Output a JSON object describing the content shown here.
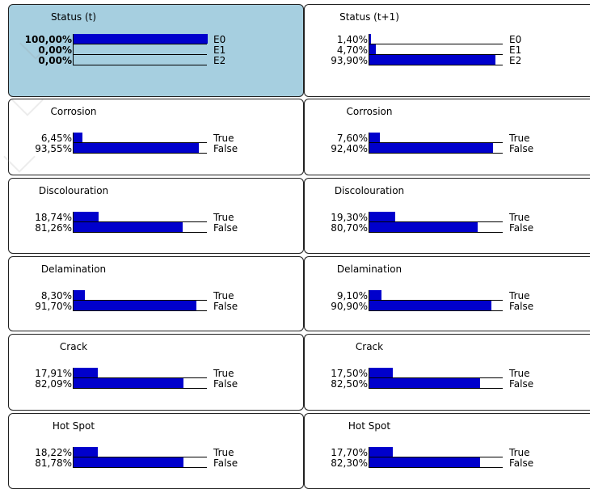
{
  "nodes": [
    {
      "title": "Status (t)",
      "selected": true,
      "bold": true,
      "states": [
        {
          "pct": "100,00%",
          "value": 100.0,
          "label": "E0"
        },
        {
          "pct": "0,00%",
          "value": 0.0,
          "label": "E1"
        },
        {
          "pct": "0,00%",
          "value": 0.0,
          "label": "E2"
        }
      ]
    },
    {
      "title": "Status (t+1)",
      "selected": false,
      "bold": false,
      "states": [
        {
          "pct": "1,40%",
          "value": 1.4,
          "label": "E0"
        },
        {
          "pct": "4,70%",
          "value": 4.7,
          "label": "E1"
        },
        {
          "pct": "93,90%",
          "value": 93.9,
          "label": "E2"
        }
      ]
    },
    {
      "title": "Corrosion",
      "selected": false,
      "bold": false,
      "states": [
        {
          "pct": "6,45%",
          "value": 6.45,
          "label": "True"
        },
        {
          "pct": "93,55%",
          "value": 93.55,
          "label": "False"
        }
      ]
    },
    {
      "title": "Corrosion",
      "selected": false,
      "bold": false,
      "states": [
        {
          "pct": "7,60%",
          "value": 7.6,
          "label": "True"
        },
        {
          "pct": "92,40%",
          "value": 92.4,
          "label": "False"
        }
      ]
    },
    {
      "title": "Discolouration",
      "selected": false,
      "bold": false,
      "states": [
        {
          "pct": "18,74%",
          "value": 18.74,
          "label": "True"
        },
        {
          "pct": "81,26%",
          "value": 81.26,
          "label": "False"
        }
      ]
    },
    {
      "title": "Discolouration",
      "selected": false,
      "bold": false,
      "states": [
        {
          "pct": "19,30%",
          "value": 19.3,
          "label": "True"
        },
        {
          "pct": "80,70%",
          "value": 80.7,
          "label": "False"
        }
      ]
    },
    {
      "title": "Delamination",
      "selected": false,
      "bold": false,
      "states": [
        {
          "pct": "8,30%",
          "value": 8.3,
          "label": "True"
        },
        {
          "pct": "91,70%",
          "value": 91.7,
          "label": "False"
        }
      ]
    },
    {
      "title": "Delamination",
      "selected": false,
      "bold": false,
      "states": [
        {
          "pct": "9,10%",
          "value": 9.1,
          "label": "True"
        },
        {
          "pct": "90,90%",
          "value": 90.9,
          "label": "False"
        }
      ]
    },
    {
      "title": "Crack",
      "selected": false,
      "bold": false,
      "states": [
        {
          "pct": "17,91%",
          "value": 17.91,
          "label": "True"
        },
        {
          "pct": "82,09%",
          "value": 82.09,
          "label": "False"
        }
      ]
    },
    {
      "title": "Crack",
      "selected": false,
      "bold": false,
      "states": [
        {
          "pct": "17,50%",
          "value": 17.5,
          "label": "True"
        },
        {
          "pct": "82,50%",
          "value": 82.5,
          "label": "False"
        }
      ]
    },
    {
      "title": "Hot Spot",
      "selected": false,
      "bold": false,
      "states": [
        {
          "pct": "18,22%",
          "value": 18.22,
          "label": "True"
        },
        {
          "pct": "81,78%",
          "value": 81.78,
          "label": "False"
        }
      ]
    },
    {
      "title": "Hot Spot",
      "selected": false,
      "bold": false,
      "states": [
        {
          "pct": "17,70%",
          "value": 17.7,
          "label": "True"
        },
        {
          "pct": "82,30%",
          "value": 82.3,
          "label": "False"
        }
      ]
    }
  ],
  "colors": {
    "bar": "#0000cc",
    "selected_bg": "#a6cfe0",
    "border": "#202020"
  }
}
